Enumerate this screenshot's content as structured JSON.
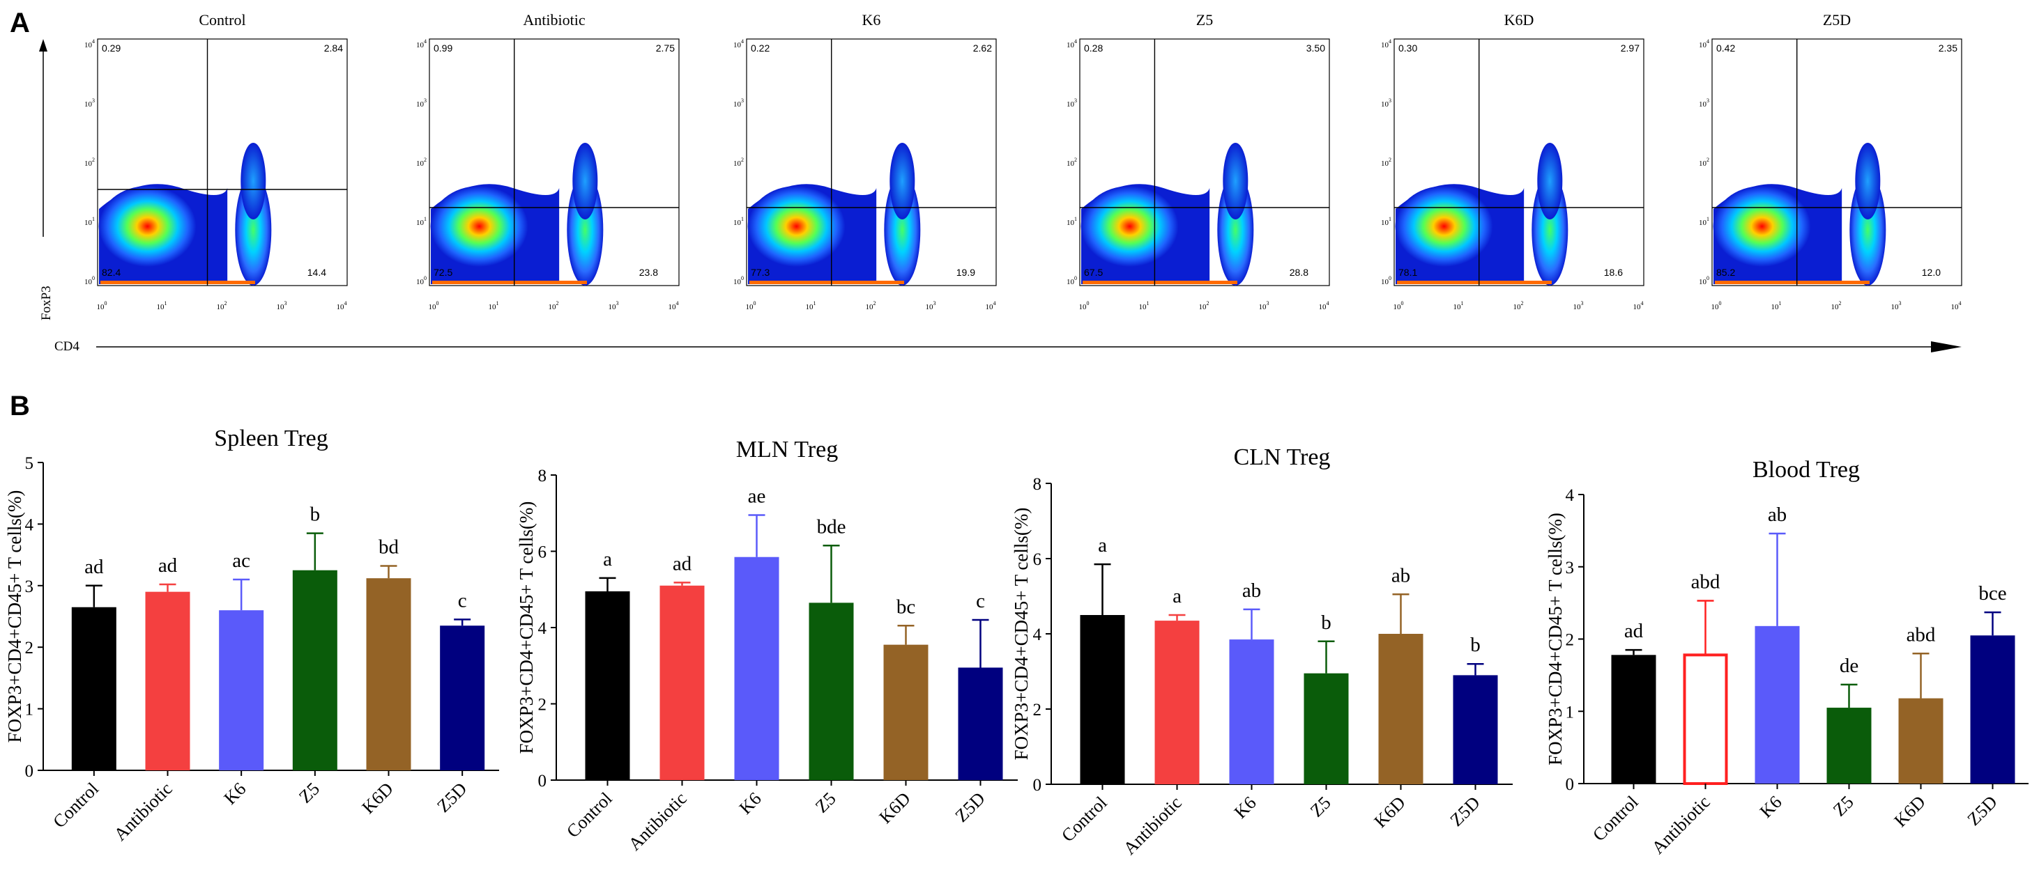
{
  "panel_a": {
    "label": "A",
    "x_axis_label": "CD4",
    "y_axis_label": "FoxP3",
    "log_ticks": [
      "10",
      "10",
      "10",
      "10",
      "10"
    ],
    "log_exps": [
      "0",
      "1",
      "2",
      "3",
      "4"
    ],
    "plots": [
      {
        "title": "Control",
        "q_ul": "0.29",
        "q_ur": "2.84",
        "q_ll": "82.4",
        "q_lr": "14.4"
      },
      {
        "title": "Antibiotic",
        "q_ul": "0.99",
        "q_ur": "2.75",
        "q_ll": "72.5",
        "q_lr": "23.8"
      },
      {
        "title": "K6",
        "q_ul": "0.22",
        "q_ur": "2.62",
        "q_ll": "77.3",
        "q_lr": "19.9"
      },
      {
        "title": "Z5",
        "q_ul": "0.28",
        "q_ur": "3.50",
        "q_ll": "67.5",
        "q_lr": "28.8"
      },
      {
        "title": "K6D",
        "q_ul": "0.30",
        "q_ur": "2.97",
        "q_ll": "78.1",
        "q_lr": "18.6"
      },
      {
        "title": "Z5D",
        "q_ul": "0.42",
        "q_ur": "2.35",
        "q_ll": "85.2",
        "q_lr": "12.0"
      }
    ]
  },
  "panel_b": {
    "label": "B"
  },
  "chart_data": [
    {
      "type": "bar",
      "title": "Spleen Treg",
      "ylabel": "FOXP3+CD4+CD45+ T cells(%)",
      "ylim": [
        0,
        5
      ],
      "yticks": [
        0,
        1,
        2,
        3,
        4,
        5
      ],
      "categories": [
        "Control",
        "Antibiotic",
        "K6",
        "Z5",
        "K6D",
        "Z5D"
      ],
      "values": [
        2.65,
        2.9,
        2.6,
        3.25,
        3.12,
        2.35
      ],
      "errors": [
        0.35,
        0.12,
        0.5,
        0.6,
        0.2,
        0.1
      ],
      "letters": [
        "ad",
        "ad",
        "ac",
        "b",
        "bd",
        "c"
      ],
      "colors": [
        "#000000",
        "#f44040",
        "#5a5afa",
        "#0a5c0a",
        "#946326",
        "#00007f"
      ]
    },
    {
      "type": "bar",
      "title": "MLN Treg",
      "ylabel": "FOXP3+CD4+CD45+ T cells(%)",
      "ylim": [
        0,
        8
      ],
      "yticks": [
        0,
        2,
        4,
        6,
        8
      ],
      "categories": [
        "Control",
        "Antibiotic",
        "K6",
        "Z5",
        "K6D",
        "Z5D"
      ],
      "values": [
        4.95,
        5.1,
        5.85,
        4.65,
        3.55,
        2.95
      ],
      "errors": [
        0.35,
        0.08,
        1.1,
        1.5,
        0.5,
        1.25
      ],
      "letters": [
        "a",
        "ad",
        "ae",
        "bde",
        "bc",
        "c"
      ],
      "colors": [
        "#000000",
        "#f44040",
        "#5a5afa",
        "#0a5c0a",
        "#946326",
        "#00007f"
      ]
    },
    {
      "type": "bar",
      "title": "CLN Treg",
      "ylabel": "FOXP3+CD4+CD45+ T cells(%)",
      "ylim": [
        0,
        8
      ],
      "yticks": [
        0,
        2,
        4,
        6,
        8
      ],
      "categories": [
        "Control",
        "Antibiotic",
        "K6",
        "Z5",
        "K6D",
        "Z5D"
      ],
      "values": [
        4.5,
        4.35,
        3.85,
        2.95,
        4.0,
        2.9
      ],
      "errors": [
        1.35,
        0.15,
        0.8,
        0.85,
        1.05,
        0.3
      ],
      "letters": [
        "a",
        "a",
        "ab",
        "b",
        "ab",
        "b"
      ],
      "colors": [
        "#000000",
        "#f44040",
        "#5a5afa",
        "#0a5c0a",
        "#946326",
        "#00007f"
      ]
    },
    {
      "type": "bar",
      "title": "Blood Treg",
      "ylabel": "FOXP3+CD4+CD45+ T cells(%)",
      "ylim": [
        0,
        4
      ],
      "yticks": [
        0,
        1,
        2,
        3,
        4
      ],
      "categories": [
        "Control",
        "Antibiotic",
        "K6",
        "Z5",
        "K6D",
        "Z5D"
      ],
      "values": [
        1.78,
        1.78,
        2.18,
        1.05,
        1.18,
        2.05
      ],
      "errors": [
        0.07,
        0.75,
        1.28,
        0.32,
        0.62,
        0.32
      ],
      "letters": [
        "ad",
        "abd",
        "ab",
        "de",
        "abd",
        "bce"
      ],
      "colors": [
        "#000000",
        "#ff2020",
        "#5a5afa",
        "#0a5c0a",
        "#946326",
        "#00007f"
      ],
      "hollow": [
        false,
        true,
        false,
        false,
        false,
        false
      ]
    }
  ]
}
